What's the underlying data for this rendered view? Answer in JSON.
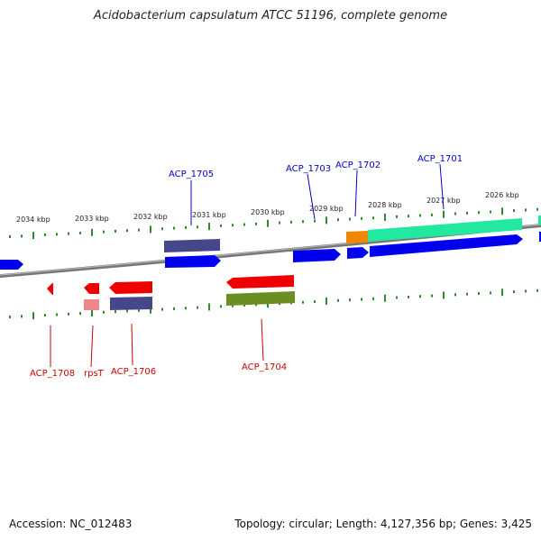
{
  "title": "Acidobacterium capsulatum ATCC 51196, complete genome",
  "footer": {
    "accession": "Accession: NC_012483",
    "summary": "Topology: circular; Length: 4,127,356 bp; Genes: 3,425"
  },
  "colors": {
    "backbone": "#888888",
    "ticks": "#2e8b2e",
    "forward_label": "#0000cc",
    "reverse_label": "#cc0000",
    "cds_forward": "#0000ee",
    "cds_reverse": "#ee0000",
    "gene_grey": "#4a4a8a",
    "teal": "#22e8a0",
    "orange": "#ee8800",
    "olive": "#6b8e23",
    "pink": "#ee8888"
  },
  "kbp_labels": [
    {
      "text": "2034 kbp"
    },
    {
      "text": "2033 kbp"
    },
    {
      "text": "2032 kbp"
    },
    {
      "text": "2031 kbp"
    },
    {
      "text": "2030 kbp"
    },
    {
      "text": "2029 kbp"
    },
    {
      "text": "2028 kbp"
    },
    {
      "text": "2027 kbp"
    },
    {
      "text": "2026 kbp"
    }
  ],
  "forward_labels": [
    {
      "text": "ACP_1705"
    },
    {
      "text": "ACP_1703"
    },
    {
      "text": "ACP_1702"
    },
    {
      "text": "ACP_1701"
    }
  ],
  "reverse_labels": [
    {
      "text": "ACP_1708"
    },
    {
      "text": "rpsT"
    },
    {
      "text": "ACP_1706"
    },
    {
      "text": "ACP_1704"
    }
  ]
}
